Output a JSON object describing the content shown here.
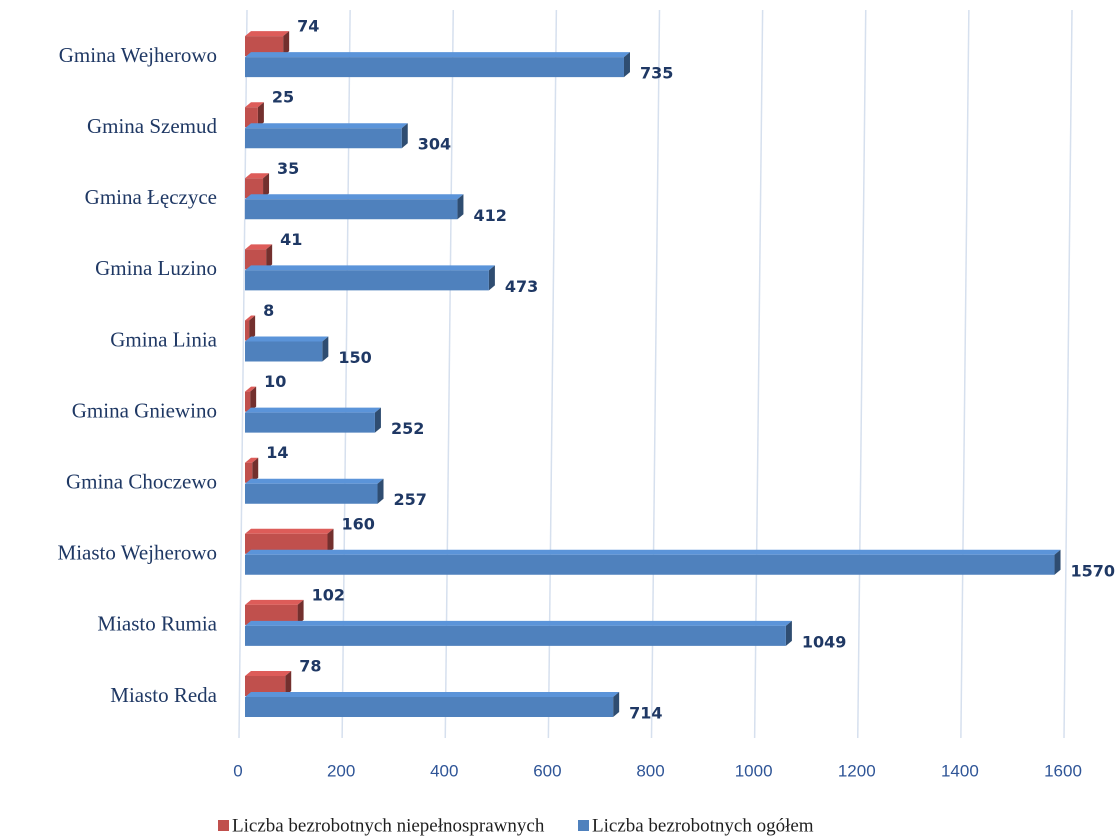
{
  "chart_data": {
    "type": "bar3d_horizontal",
    "categories": [
      "Miasto Reda",
      "Miasto Rumia",
      "Miasto Wejherowo",
      "Gmina Choczewo",
      "Gmina Gniewino",
      "Gmina Linia",
      "Gmina Luzino",
      "Gmina Łęczyce",
      "Gmina Szemud",
      "Gmina Wejherowo"
    ],
    "series": [
      {
        "name": "Liczba bezrobotnych niepełnosprawnych",
        "color": "#c0504d",
        "values": [
          78,
          102,
          160,
          14,
          10,
          8,
          41,
          35,
          25,
          74
        ]
      },
      {
        "name": "Liczba bezrobotnych ogółem",
        "color": "#4f81bd",
        "values": [
          714,
          1049,
          1570,
          257,
          252,
          150,
          473,
          412,
          304,
          735
        ]
      }
    ],
    "xlim": [
      0,
      1600
    ],
    "xticks": [
      0,
      200,
      400,
      600,
      800,
      1000,
      1200,
      1400,
      1600
    ],
    "grid": true,
    "legend": "bottom"
  }
}
